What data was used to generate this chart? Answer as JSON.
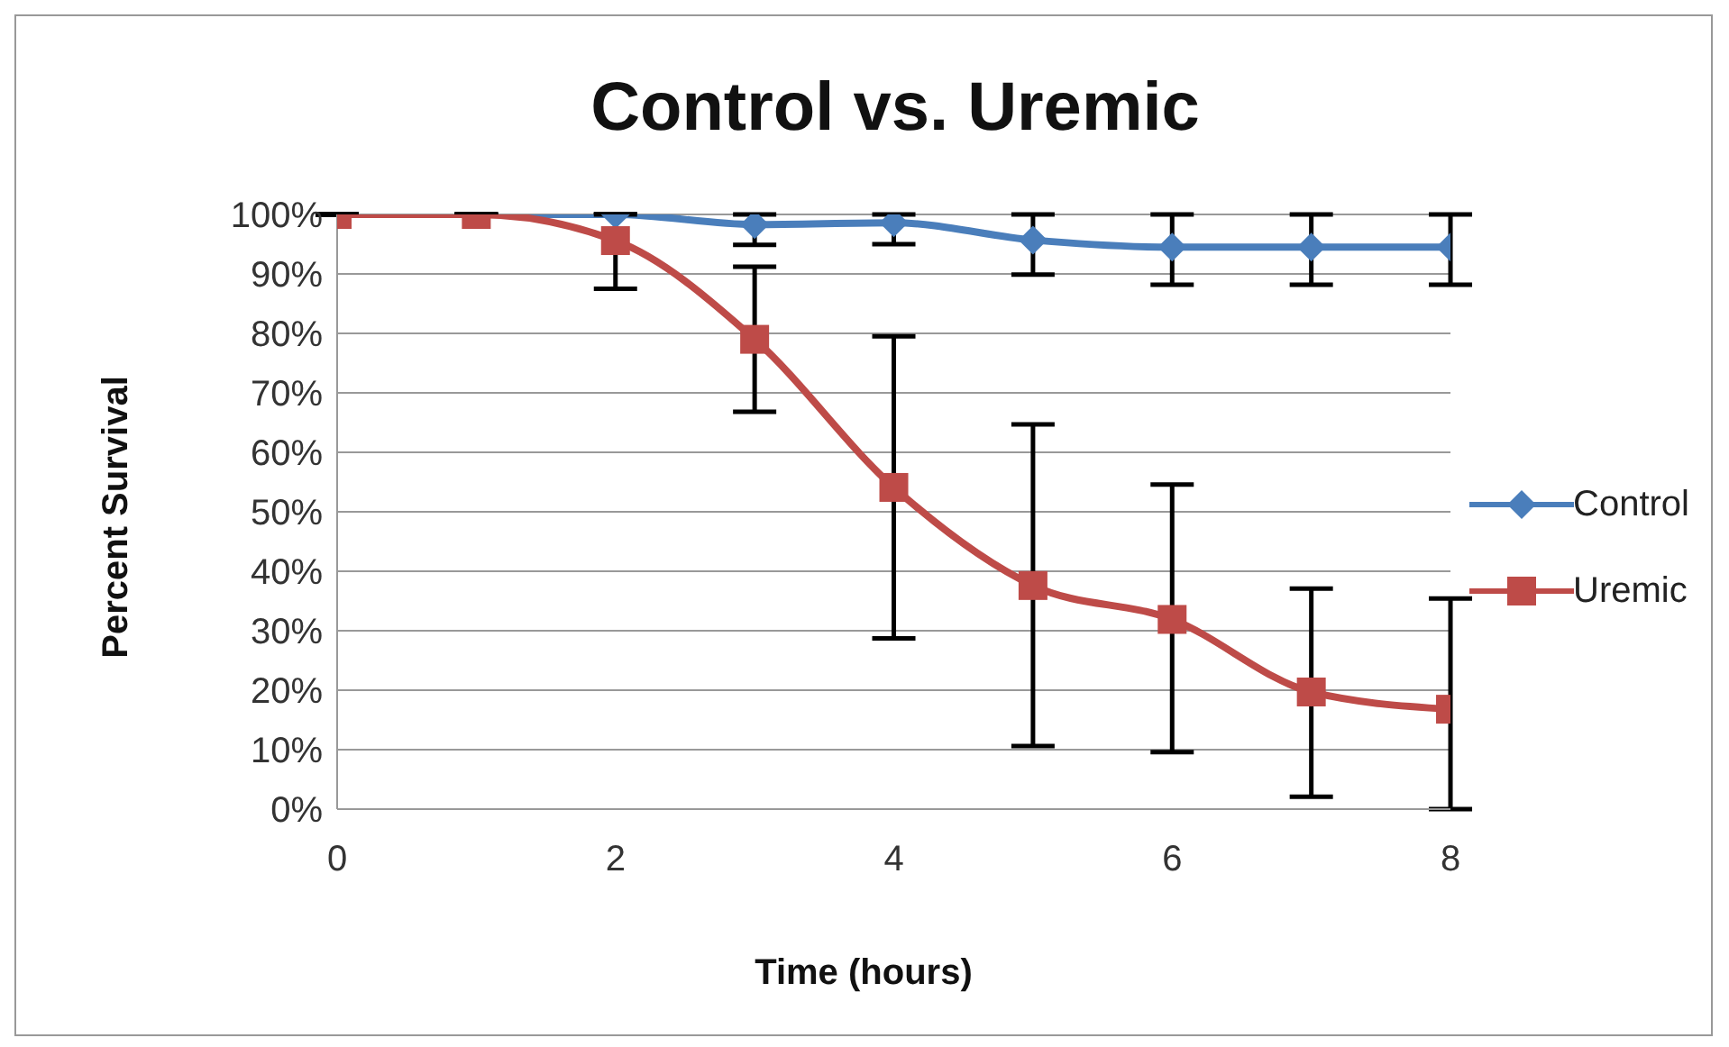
{
  "chart_data": {
    "type": "line",
    "title": "Control vs. Uremic",
    "xlabel": "Time (hours)",
    "ylabel": "Percent Survival",
    "x": [
      0,
      1,
      2,
      3,
      4,
      5,
      6,
      7,
      8
    ],
    "series": [
      {
        "name": "Control",
        "color": "#4a7ebb",
        "marker": "diamond",
        "values": [
          100,
          100,
          100,
          98.3,
          98.6,
          95.7,
          94.5,
          94.5,
          94.5
        ],
        "errors": [
          null,
          null,
          null,
          [
            94.9,
            100
          ],
          [
            95,
            100
          ],
          [
            89.9,
            100
          ],
          [
            88.2,
            100
          ],
          [
            88.2,
            100
          ],
          [
            88.2,
            100
          ]
        ]
      },
      {
        "name": "Uremic",
        "color": "#be4b48",
        "marker": "square",
        "values": [
          100,
          100,
          95.6,
          79,
          54.1,
          37.6,
          31.9,
          19.7,
          16.8
        ],
        "errors": [
          null,
          null,
          [
            87.5,
            100
          ],
          [
            66.8,
            91.2
          ],
          [
            28.7,
            79.5
          ],
          [
            10.6,
            64.7
          ],
          [
            9.6,
            54.6
          ],
          [
            2.1,
            37.1
          ],
          [
            0,
            35.4
          ]
        ]
      }
    ],
    "xlim": [
      0,
      8
    ],
    "xticks": [
      0,
      2,
      4,
      6,
      8
    ],
    "ylim": [
      0,
      100
    ],
    "yticks": [
      {
        "value": 0,
        "label": "0%"
      },
      {
        "value": 10,
        "label": "10%"
      },
      {
        "value": 20,
        "label": "20%"
      },
      {
        "value": 30,
        "label": "30%"
      },
      {
        "value": 40,
        "label": "40%"
      },
      {
        "value": 50,
        "label": "50%"
      },
      {
        "value": 60,
        "label": "60%"
      },
      {
        "value": 70,
        "label": "70%"
      },
      {
        "value": 80,
        "label": "80%"
      },
      {
        "value": 90,
        "label": "90%"
      },
      {
        "value": 100,
        "label": "100%"
      }
    ],
    "grid": "y",
    "legend": "right"
  }
}
